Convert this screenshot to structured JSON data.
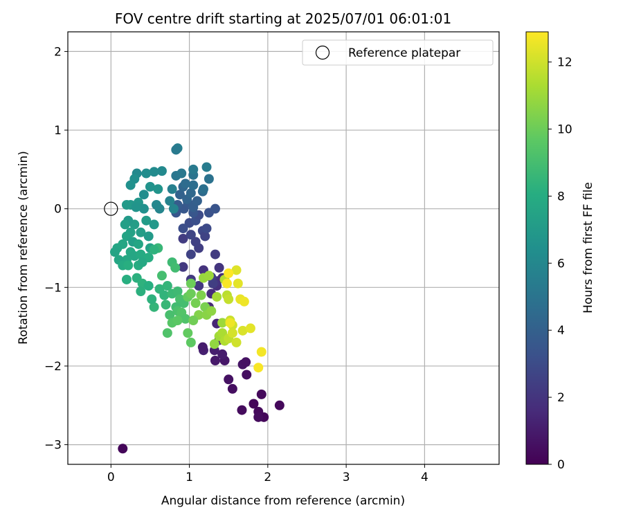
{
  "chart_data": {
    "type": "scatter",
    "title": "FOV centre drift starting at 2025/07/01 06:01:01",
    "xlabel": "Angular distance from reference (arcmin)",
    "ylabel": "Rotation from reference (arcmin)",
    "xlim": [
      -0.55,
      4.95
    ],
    "ylim": [
      -3.25,
      2.25
    ],
    "xticks": [
      0,
      1,
      2,
      3,
      4
    ],
    "yticks": [
      -3,
      -2,
      -1,
      0,
      1,
      2
    ],
    "grid": true,
    "legend": {
      "position": "top-right",
      "entries": [
        "Reference platepar"
      ]
    },
    "reference_point": {
      "x": 0,
      "y": 0,
      "label": "Reference platepar"
    },
    "colorbar": {
      "label": "Hours from first FF file",
      "min": 0,
      "max": 12.9,
      "ticks": [
        0,
        2,
        4,
        6,
        8,
        10,
        12
      ],
      "colormap": "viridis"
    },
    "points": [
      [
        0.15,
        -3.05,
        0.2
      ],
      [
        2.15,
        -2.5,
        0.3
      ],
      [
        1.95,
        -2.65,
        0.2
      ],
      [
        1.88,
        -2.58,
        0.3
      ],
      [
        1.88,
        -2.65,
        0.4
      ],
      [
        1.82,
        -2.48,
        0.2
      ],
      [
        1.92,
        -2.36,
        0.3
      ],
      [
        1.67,
        -2.56,
        0.4
      ],
      [
        1.55,
        -2.29,
        0.5
      ],
      [
        1.5,
        -2.17,
        0.6
      ],
      [
        1.73,
        -2.11,
        0.5
      ],
      [
        1.68,
        -1.98,
        0.7
      ],
      [
        1.72,
        -1.95,
        0.6
      ],
      [
        1.45,
        -1.93,
        0.8
      ],
      [
        1.33,
        -1.93,
        0.9
      ],
      [
        1.42,
        -1.85,
        1.0
      ],
      [
        1.32,
        -1.8,
        1.1
      ],
      [
        1.18,
        -1.8,
        1.2
      ],
      [
        1.17,
        -1.76,
        1.0
      ],
      [
        1.38,
        -1.67,
        1.3
      ],
      [
        1.35,
        -1.46,
        1.4
      ],
      [
        1.25,
        -1.25,
        1.5
      ],
      [
        1.28,
        -1.08,
        1.6
      ],
      [
        1.35,
        -0.98,
        1.8
      ],
      [
        1.35,
        -0.92,
        2.0
      ],
      [
        1.42,
        -0.88,
        1.7
      ],
      [
        1.18,
        -0.78,
        1.9
      ],
      [
        1.12,
        -0.98,
        2.1
      ],
      [
        1.02,
        -0.9,
        2.2
      ],
      [
        1.38,
        -0.75,
        2.0
      ],
      [
        1.33,
        -0.58,
        2.3
      ],
      [
        1.3,
        -0.95,
        2.4
      ],
      [
        1.28,
        -0.87,
        2.5
      ],
      [
        0.92,
        -0.74,
        2.2
      ],
      [
        1.02,
        -0.58,
        2.6
      ],
      [
        1.12,
        -0.5,
        2.4
      ],
      [
        0.92,
        -0.38,
        2.3
      ],
      [
        1.08,
        -0.42,
        2.5
      ],
      [
        1.02,
        -0.33,
        2.7
      ],
      [
        1.17,
        -0.28,
        2.8
      ],
      [
        1.2,
        -0.35,
        2.6
      ],
      [
        1.22,
        -0.25,
        2.9
      ],
      [
        1.0,
        -0.18,
        3.0
      ],
      [
        0.92,
        -0.25,
        3.1
      ],
      [
        1.08,
        -0.15,
        3.2
      ],
      [
        1.12,
        -0.08,
        3.0
      ],
      [
        1.25,
        -0.05,
        3.3
      ],
      [
        1.33,
        0.0,
        3.4
      ],
      [
        1.05,
        -0.05,
        3.5
      ],
      [
        0.93,
        0.0,
        3.6
      ],
      [
        0.83,
        -0.05,
        3.5
      ],
      [
        0.85,
        0.05,
        3.8
      ],
      [
        0.98,
        0.08,
        3.7
      ],
      [
        1.05,
        0.02,
        3.9
      ],
      [
        1.1,
        0.1,
        4.0
      ],
      [
        0.97,
        0.12,
        4.2
      ],
      [
        0.88,
        0.18,
        4.1
      ],
      [
        0.92,
        0.28,
        4.3
      ],
      [
        1.02,
        0.2,
        4.4
      ],
      [
        1.17,
        0.22,
        4.5
      ],
      [
        0.95,
        0.32,
        4.6
      ],
      [
        1.05,
        0.3,
        4.7
      ],
      [
        1.18,
        0.25,
        4.8
      ],
      [
        1.25,
        0.38,
        4.9
      ],
      [
        1.05,
        0.43,
        5.0
      ],
      [
        0.83,
        0.42,
        5.1
      ],
      [
        0.9,
        0.45,
        5.2
      ],
      [
        1.05,
        0.5,
        5.3
      ],
      [
        1.22,
        0.53,
        5.4
      ],
      [
        0.85,
        0.77,
        5.5
      ],
      [
        0.83,
        0.75,
        5.3
      ],
      [
        0.78,
        0.25,
        5.6
      ],
      [
        0.75,
        0.1,
        5.7
      ],
      [
        0.8,
        0.0,
        5.8
      ],
      [
        0.62,
        0.0,
        5.9
      ],
      [
        0.58,
        0.05,
        6.0
      ],
      [
        0.65,
        0.48,
        6.1
      ],
      [
        0.55,
        0.47,
        6.2
      ],
      [
        0.45,
        0.45,
        6.3
      ],
      [
        0.33,
        0.45,
        6.1
      ],
      [
        0.3,
        0.38,
        6.4
      ],
      [
        0.25,
        0.3,
        6.5
      ],
      [
        0.42,
        0.18,
        6.3
      ],
      [
        0.5,
        0.28,
        6.6
      ],
      [
        0.6,
        0.25,
        6.7
      ],
      [
        0.35,
        0.08,
        6.8
      ],
      [
        0.42,
        0.0,
        6.5
      ],
      [
        0.25,
        0.05,
        6.9
      ],
      [
        0.2,
        0.05,
        7.0
      ],
      [
        0.32,
        0.02,
        6.7
      ],
      [
        0.45,
        -0.15,
        7.1
      ],
      [
        0.55,
        -0.2,
        6.9
      ],
      [
        0.3,
        -0.2,
        7.2
      ],
      [
        0.22,
        -0.15,
        7.0
      ],
      [
        0.18,
        -0.2,
        7.3
      ],
      [
        0.25,
        -0.3,
        7.4
      ],
      [
        0.38,
        -0.3,
        7.2
      ],
      [
        0.48,
        -0.35,
        7.0
      ],
      [
        0.2,
        -0.35,
        7.5
      ],
      [
        0.28,
        -0.42,
        7.3
      ],
      [
        0.35,
        -0.45,
        7.6
      ],
      [
        0.5,
        -0.5,
        7.4
      ],
      [
        0.15,
        -0.45,
        7.7
      ],
      [
        0.08,
        -0.5,
        7.6
      ],
      [
        0.05,
        -0.55,
        7.5
      ],
      [
        0.25,
        -0.55,
        7.8
      ],
      [
        0.3,
        -0.6,
        7.7
      ],
      [
        0.38,
        -0.58,
        7.9
      ],
      [
        0.48,
        -0.62,
        8.0
      ],
      [
        0.2,
        -0.65,
        7.8
      ],
      [
        0.1,
        -0.65,
        7.6
      ],
      [
        0.15,
        -0.72,
        7.9
      ],
      [
        0.22,
        -0.72,
        8.1
      ],
      [
        0.35,
        -0.72,
        8.0
      ],
      [
        0.4,
        -0.68,
        7.8
      ],
      [
        0.2,
        -0.9,
        8.1
      ],
      [
        0.33,
        -0.88,
        8.2
      ],
      [
        0.4,
        -0.95,
        8.3
      ],
      [
        0.48,
        -0.98,
        8.1
      ],
      [
        0.38,
        -1.05,
        8.2
      ],
      [
        0.6,
        -0.5,
        8.6
      ],
      [
        0.55,
        -0.52,
        8.3
      ],
      [
        0.62,
        -1.02,
        8.4
      ],
      [
        0.72,
        -0.98,
        8.5
      ],
      [
        0.68,
        -1.1,
        8.4
      ],
      [
        0.7,
        -1.22,
        8.6
      ],
      [
        0.55,
        -1.25,
        8.5
      ],
      [
        0.52,
        -1.15,
        8.3
      ],
      [
        0.78,
        -0.68,
        8.8
      ],
      [
        0.82,
        -0.75,
        8.9
      ],
      [
        0.65,
        -0.85,
        9.0
      ],
      [
        0.78,
        -1.08,
        8.7
      ],
      [
        0.85,
        -1.05,
        8.8
      ],
      [
        0.88,
        -1.15,
        9.1
      ],
      [
        0.93,
        -1.2,
        9.0
      ],
      [
        0.83,
        -1.25,
        8.9
      ],
      [
        0.85,
        -1.3,
        9.2
      ],
      [
        0.75,
        -1.35,
        9.1
      ],
      [
        0.9,
        -1.32,
        9.4
      ],
      [
        0.95,
        -1.4,
        9.3
      ],
      [
        0.78,
        -1.45,
        9.5
      ],
      [
        0.85,
        -1.42,
        9.6
      ],
      [
        0.72,
        -1.58,
        9.3
      ],
      [
        0.98,
        -1.58,
        9.8
      ],
      [
        1.02,
        -1.7,
        9.7
      ],
      [
        0.98,
        -1.12,
        9.8
      ],
      [
        1.02,
        -1.08,
        10.0
      ],
      [
        1.08,
        -1.2,
        10.2
      ],
      [
        1.15,
        -1.1,
        10.4
      ],
      [
        1.2,
        -1.25,
        10.3
      ],
      [
        1.12,
        -1.35,
        10.5
      ],
      [
        1.05,
        -1.42,
        10.1
      ],
      [
        1.22,
        -1.35,
        10.6
      ],
      [
        1.28,
        -1.3,
        10.7
      ],
      [
        1.02,
        -0.95,
        10.0
      ],
      [
        1.18,
        -0.88,
        10.9
      ],
      [
        1.25,
        -0.85,
        11.0
      ],
      [
        1.35,
        -1.12,
        11.2
      ],
      [
        1.42,
        -1.45,
        11.0
      ],
      [
        1.38,
        -1.62,
        11.1
      ],
      [
        1.42,
        -1.58,
        11.3
      ],
      [
        1.45,
        -1.68,
        11.4
      ],
      [
        1.32,
        -1.72,
        10.8
      ],
      [
        1.45,
        -0.9,
        11.5
      ],
      [
        1.48,
        -1.1,
        11.6
      ],
      [
        1.5,
        -1.15,
        11.8
      ],
      [
        1.52,
        -1.42,
        11.9
      ],
      [
        1.55,
        -1.48,
        12.0
      ],
      [
        1.5,
        -1.65,
        11.7
      ],
      [
        1.55,
        -1.58,
        12.1
      ],
      [
        1.6,
        -0.78,
        12.3
      ],
      [
        1.62,
        -0.95,
        12.4
      ],
      [
        1.65,
        -1.15,
        12.5
      ],
      [
        1.7,
        -1.18,
        12.6
      ],
      [
        1.68,
        -1.55,
        12.2
      ],
      [
        1.6,
        -1.7,
        12.0
      ],
      [
        1.78,
        -1.52,
        12.4
      ],
      [
        1.92,
        -1.82,
        12.7
      ],
      [
        1.88,
        -2.02,
        12.8
      ],
      [
        1.5,
        -0.82,
        12.9
      ],
      [
        1.48,
        -0.95,
        12.8
      ],
      [
        1.52,
        -1.45,
        12.6
      ]
    ]
  }
}
